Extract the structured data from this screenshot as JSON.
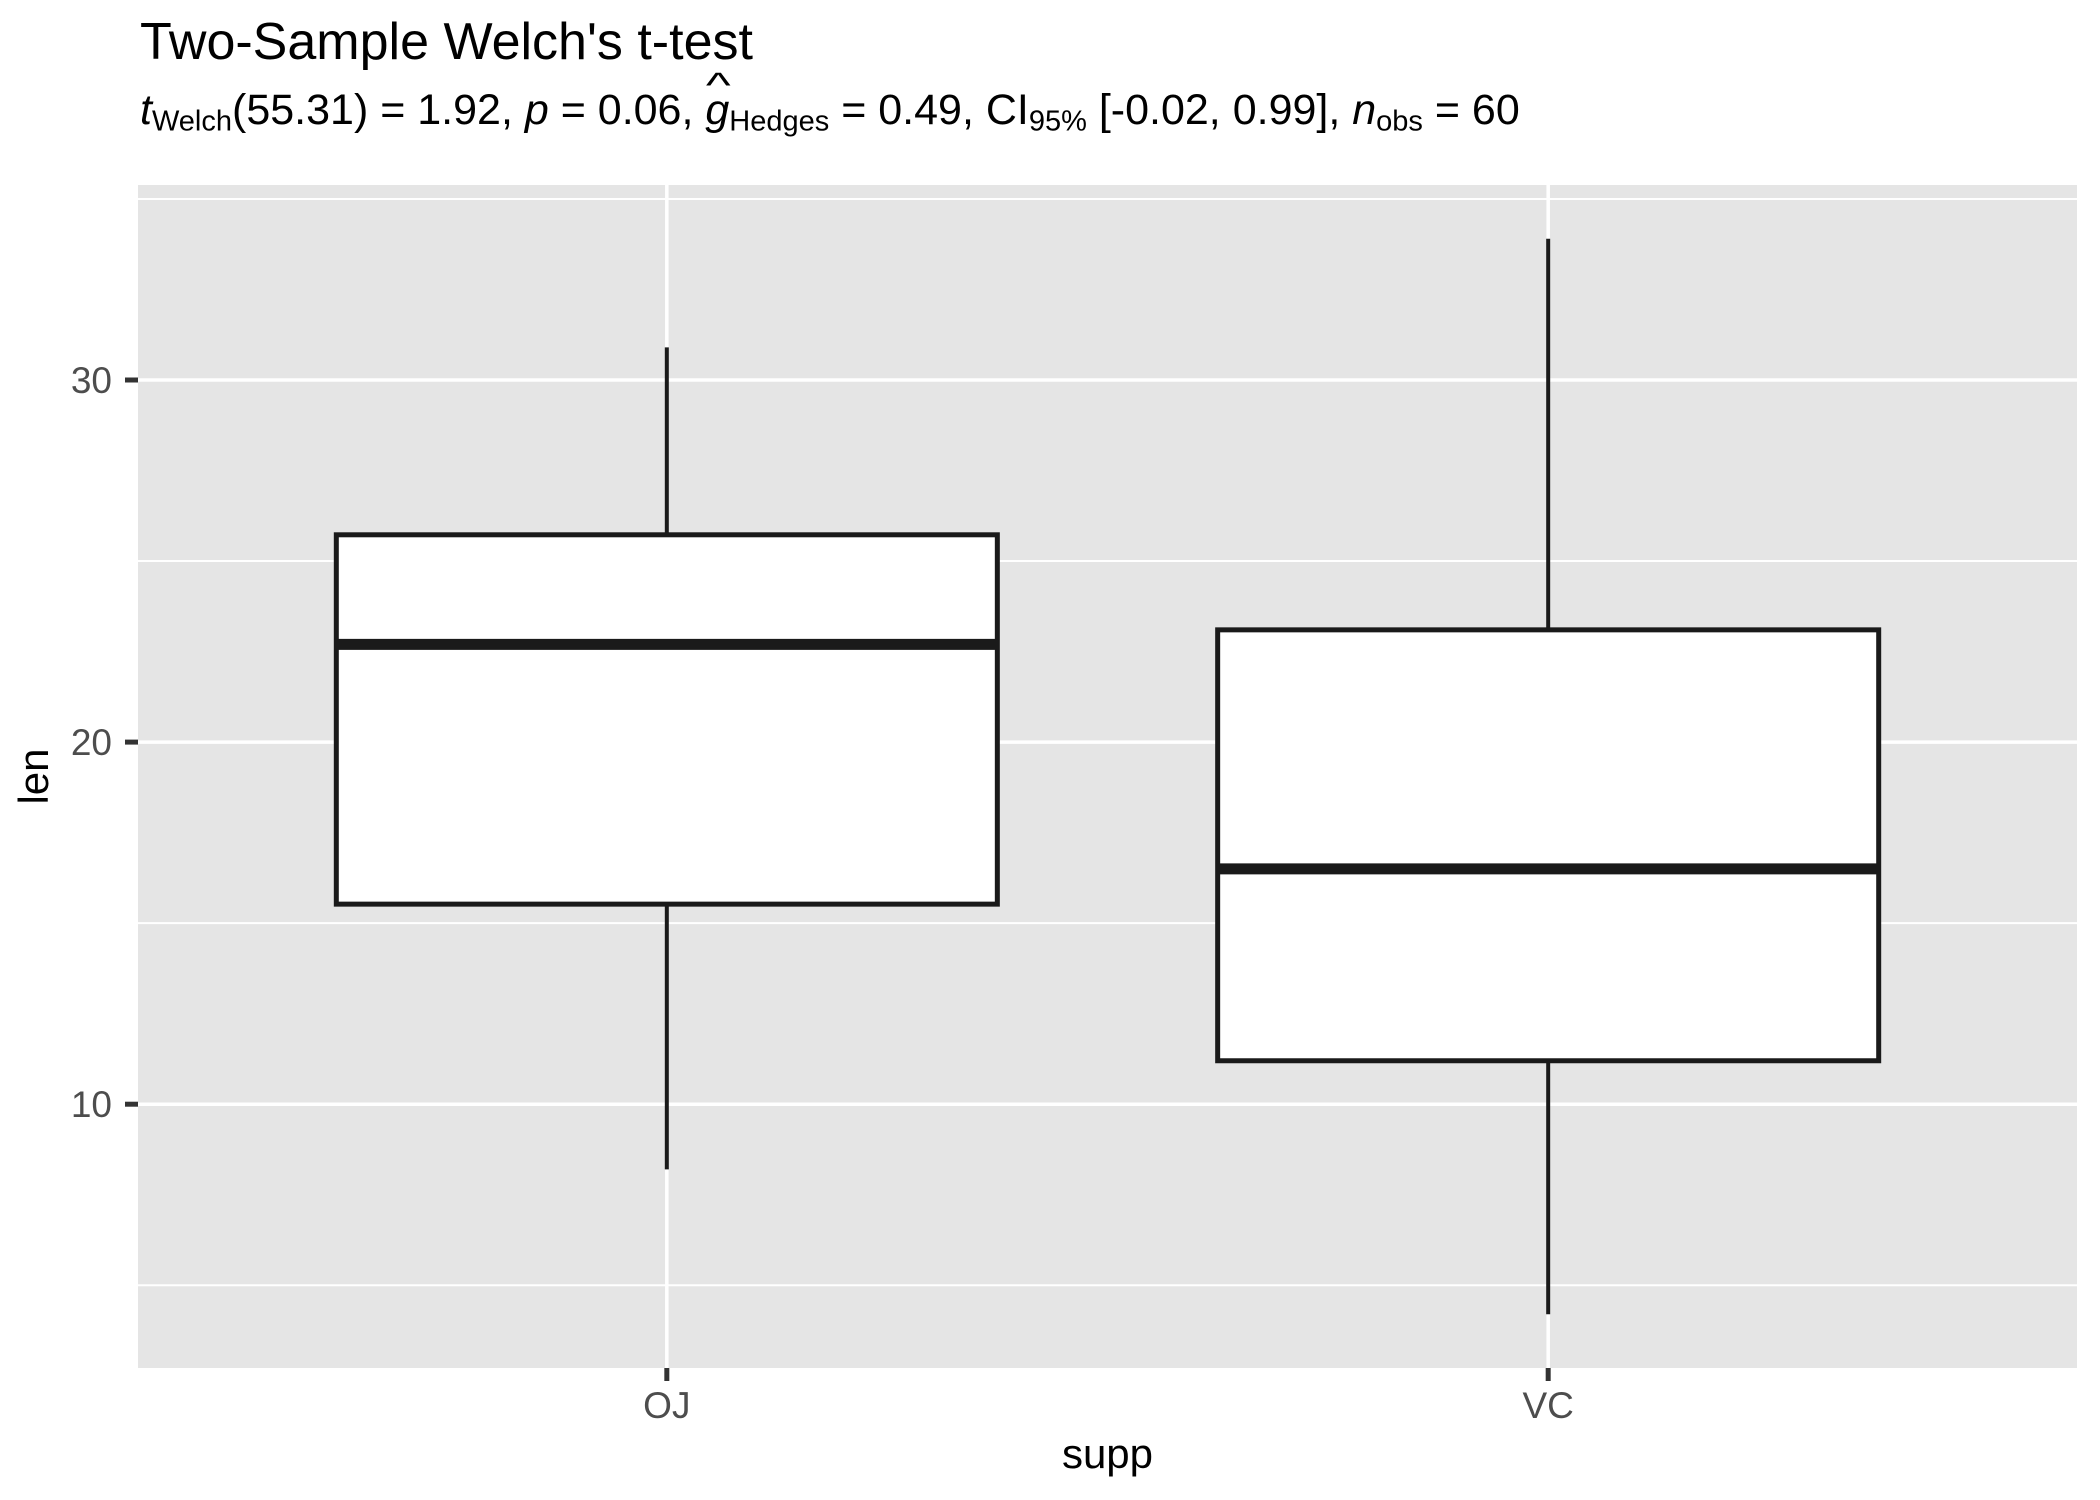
{
  "title": "Two-Sample Welch's t-test",
  "chart_data": {
    "type": "boxplot",
    "title": "Two-Sample Welch's t-test",
    "subtitle_plain": "t_Welch(55.31) = 1.92, p = 0.06, g-hat_Hedges = 0.49, CI_95% [-0.02, 0.99], n_obs = 60",
    "subtitle_parts": [
      {
        "t": "t",
        "italic": true
      },
      {
        "t": "Welch",
        "sub": true
      },
      {
        "t": "(55.31) = 1.92, "
      },
      {
        "t": "p",
        "italic": true
      },
      {
        "t": " = 0.06, "
      },
      {
        "t": "g",
        "italic": true,
        "hat": true
      },
      {
        "t": "Hedges",
        "sub": true
      },
      {
        "t": " = 0.49, CI"
      },
      {
        "t": "95%",
        "sub": true
      },
      {
        "t": " [-0.02, 0.99], "
      },
      {
        "t": "n",
        "italic": true
      },
      {
        "t": "obs",
        "sub": true
      },
      {
        "t": " = 60"
      }
    ],
    "hat_glyph": "^",
    "xlabel": "supp",
    "ylabel": "len",
    "categories": [
      "OJ",
      "VC"
    ],
    "series": [
      {
        "name": "OJ",
        "min": 8.2,
        "q1": 15.525,
        "median": 22.7,
        "q3": 25.725,
        "max": 30.9
      },
      {
        "name": "VC",
        "min": 4.2,
        "q1": 11.2,
        "median": 16.5,
        "q3": 23.1,
        "max": 33.9
      }
    ],
    "y_ticks": [
      10,
      20,
      30
    ],
    "y_tick_labels": [
      "10",
      "20",
      "30"
    ],
    "y_minor_ticks": [
      5,
      15,
      25,
      35
    ],
    "ylim": [
      2.715,
      35.385
    ],
    "grid": true,
    "legend": "none",
    "colors": {
      "panel_bg": "#E5E5E5",
      "grid": "#FFFFFF",
      "box_fill": "#FFFFFF",
      "line": "#1A1A1A",
      "tick_mark": "#333333",
      "axis_text": "#4D4D4D",
      "axis_title": "#000000",
      "title_text": "#000000"
    }
  }
}
